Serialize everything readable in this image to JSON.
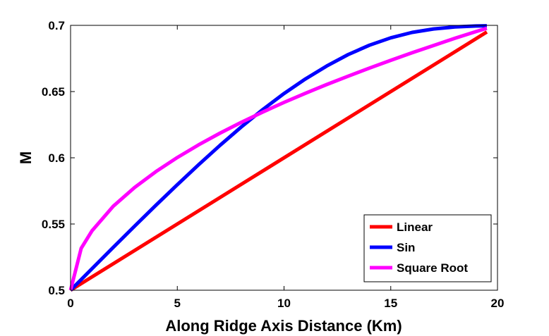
{
  "chart_data": {
    "type": "line",
    "title": "",
    "xlabel": "Along Ridge Axis Distance (Km)",
    "ylabel": "M",
    "xlim": [
      0,
      20
    ],
    "ylim": [
      0.5,
      0.7
    ],
    "xticks": [
      0,
      5,
      10,
      15,
      20
    ],
    "xtick_labels": [
      "0",
      "5",
      "10",
      "15",
      "20"
    ],
    "yticks": [
      0.5,
      0.55,
      0.6,
      0.65,
      0.7
    ],
    "ytick_labels": [
      "0.5",
      "0.55",
      "0.6",
      "0.65",
      "0.7"
    ],
    "grid": false,
    "legend_position": "bottom-right",
    "series": [
      {
        "name": "Linear",
        "color": "#ff0000",
        "x": [
          0,
          19.5
        ],
        "y": [
          0.5,
          0.695
        ]
      },
      {
        "name": "Sin",
        "color": "#0000ff",
        "x": [
          0,
          1,
          2,
          3,
          4,
          5,
          6,
          7,
          8,
          9,
          10,
          11,
          12,
          13,
          14,
          15,
          16,
          17,
          18,
          19,
          19.5
        ],
        "y": [
          0.5,
          0.5162,
          0.5324,
          0.5484,
          0.5642,
          0.5797,
          0.5948,
          0.6094,
          0.6233,
          0.6364,
          0.6485,
          0.6595,
          0.6693,
          0.6779,
          0.685,
          0.6906,
          0.6947,
          0.6973,
          0.6988,
          0.6995,
          0.6997
        ]
      },
      {
        "name": "Square Root",
        "color": "#ff00ff",
        "x": [
          0,
          0.5,
          1,
          2,
          3,
          4,
          5,
          6,
          7,
          8,
          9,
          10,
          11,
          12,
          13,
          14,
          15,
          16,
          17,
          18,
          19,
          19.5
        ],
        "y": [
          0.5,
          0.5317,
          0.5448,
          0.5634,
          0.5776,
          0.5896,
          0.6002,
          0.6098,
          0.6186,
          0.6268,
          0.6345,
          0.6418,
          0.6487,
          0.6553,
          0.6616,
          0.6677,
          0.6736,
          0.6793,
          0.6848,
          0.6902,
          0.6953,
          0.6978
        ]
      }
    ]
  }
}
